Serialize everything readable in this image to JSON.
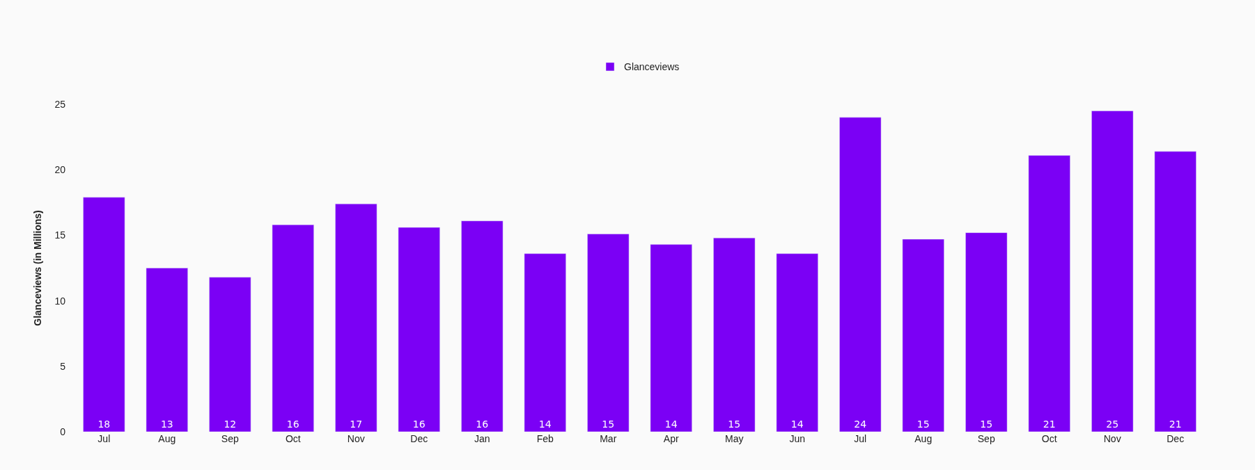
{
  "chart_data": {
    "type": "bar",
    "ylabel": "Glanceviews (in Millions)",
    "categories": [
      "Jul",
      "Aug",
      "Sep",
      "Oct",
      "Nov",
      "Dec",
      "Jan",
      "Feb",
      "Mar",
      "Apr",
      "May",
      "Jun",
      "Jul",
      "Aug",
      "Sep",
      "Oct",
      "Nov",
      "Dec"
    ],
    "series": [
      {
        "name": "Glanceviews",
        "color": "#7b00f5",
        "values": [
          17.9,
          12.5,
          11.8,
          15.8,
          17.4,
          15.6,
          16.1,
          13.6,
          15.1,
          14.3,
          14.8,
          13.6,
          24.0,
          14.7,
          15.2,
          21.1,
          24.5,
          21.4
        ],
        "value_labels": [
          "18",
          "13",
          "12",
          "16",
          "17",
          "16",
          "16",
          "14",
          "15",
          "14",
          "15",
          "14",
          "24",
          "15",
          "15",
          "21",
          "25",
          "21"
        ]
      }
    ],
    "ylim": [
      0,
      25
    ],
    "yticks": [
      0,
      5,
      10,
      15,
      20,
      25
    ],
    "legend": "top"
  }
}
